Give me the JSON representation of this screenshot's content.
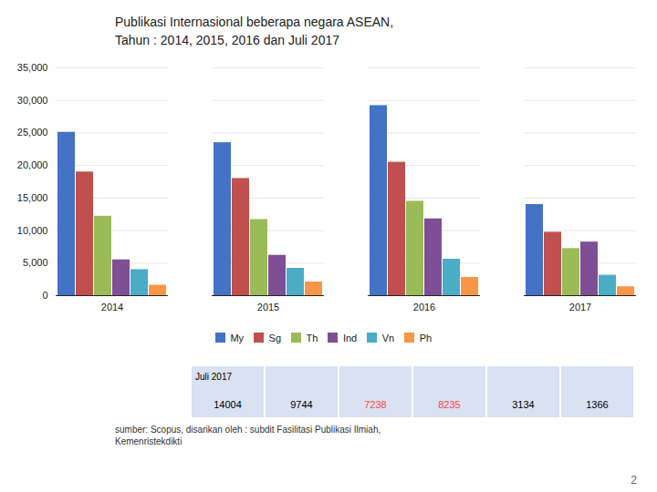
{
  "chart_data": {
    "type": "bar",
    "title": "Publikasi Internasional beberapa negara ASEAN,",
    "subtitle": "Tahun : 2014, 2015, 2016 dan Juli 2017",
    "categories": [
      "2014",
      "2015",
      "2016",
      "2017"
    ],
    "series": [
      {
        "name": "My",
        "color": "#4472C4",
        "values": [
          25100,
          23500,
          29200,
          14004
        ]
      },
      {
        "name": "Sg",
        "color": "#C0504D",
        "values": [
          19000,
          18000,
          20500,
          9744
        ]
      },
      {
        "name": "Th",
        "color": "#9BBB59",
        "values": [
          12200,
          11700,
          14500,
          7238
        ]
      },
      {
        "name": "Ind",
        "color": "#7F4F96",
        "values": [
          5500,
          6200,
          11800,
          8235
        ]
      },
      {
        "name": "Vn",
        "color": "#4BACC6",
        "values": [
          4000,
          4200,
          5600,
          3134
        ]
      },
      {
        "name": "Ph",
        "color": "#F79646",
        "values": [
          1600,
          2100,
          2800,
          1366
        ]
      }
    ],
    "ylim": [
      0,
      35000
    ],
    "yticks": [
      0,
      {
        "value": 5000,
        "label": "5,000"
      },
      {
        "value": 10000,
        "label": "10,000"
      },
      {
        "value": 15000,
        "label": "15,000"
      },
      {
        "value": 20000,
        "label": "20,000"
      },
      {
        "value": 25000,
        "label": "25,000"
      },
      {
        "value": 30000,
        "label": "30,000"
      },
      {
        "value": 35000,
        "label": "35,000"
      }
    ],
    "grid": true,
    "legend": "bottom",
    "table": {
      "label": "Juli 2017",
      "values": [
        14004,
        9744,
        7238,
        8235,
        3134,
        1366
      ],
      "colors": [
        "#000000",
        "#000000",
        "#FF4444",
        "#FF4444",
        "#000000",
        "#000000"
      ]
    },
    "source": "sumber: Scopus, disarikan oleh :  subdit  Fasilitasi Publikasi Ilmiah,\nKemenristekdikti",
    "page_number": "2"
  }
}
